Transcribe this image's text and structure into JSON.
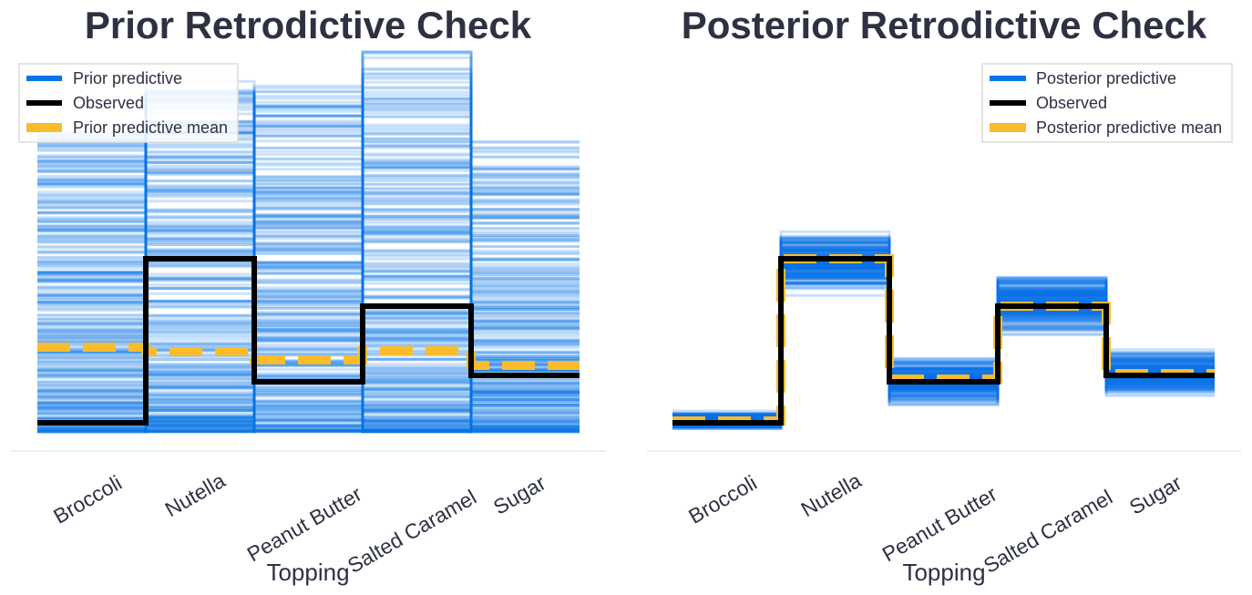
{
  "colors": {
    "predictive": "#0774e8",
    "observed": "#000000",
    "mean": "#fbbc2b",
    "text": "#2d3142",
    "axis": "#dddddd"
  },
  "chart_data": [
    {
      "type": "line",
      "title": "Prior Retrodictive Check",
      "xlabel": "Topping",
      "categories": [
        "Broccoli",
        "Nutella",
        "Peanut Butter",
        "Salted Caramel",
        "Sugar"
      ],
      "ylim": [
        0,
        0.45
      ],
      "legend": {
        "placement": "top-left",
        "entries": [
          "Prior predictive",
          "Observed",
          "Prior predictive mean"
        ]
      },
      "series": [
        {
          "name": "Observed",
          "values": [
            0.01,
            0.19,
            0.055,
            0.138,
            0.062
          ]
        },
        {
          "name": "Prior predictive mean",
          "values": [
            0.093,
            0.088,
            0.079,
            0.089,
            0.073
          ]
        }
      ],
      "predictive_samples": {
        "name": "Prior predictive",
        "count": 300,
        "lower": [
          0.0,
          0.0,
          0.0,
          0.0,
          0.0
        ],
        "upper": [
          0.33,
          0.39,
          0.38,
          0.42,
          0.32
        ],
        "envelope": "prior"
      }
    },
    {
      "type": "line",
      "title": "Posterior Retrodictive Check",
      "xlabel": "Topping",
      "categories": [
        "Broccoli",
        "Nutella",
        "Peanut Butter",
        "Salted Caramel",
        "Sugar"
      ],
      "ylim": [
        0,
        0.45
      ],
      "legend": {
        "placement": "top-right",
        "entries": [
          "Posterior predictive",
          "Observed",
          "Posterior predictive mean"
        ]
      },
      "series": [
        {
          "name": "Observed",
          "values": [
            0.01,
            0.19,
            0.055,
            0.138,
            0.062
          ]
        },
        {
          "name": "Posterior predictive mean",
          "values": [
            0.012,
            0.19,
            0.058,
            0.138,
            0.064
          ]
        }
      ],
      "predictive_samples": {
        "name": "Posterior predictive",
        "count": 200,
        "lower": [
          0.0,
          0.14,
          0.025,
          0.1,
          0.035
        ],
        "upper": [
          0.025,
          0.235,
          0.085,
          0.18,
          0.095
        ],
        "envelope": "posterior"
      }
    }
  ]
}
